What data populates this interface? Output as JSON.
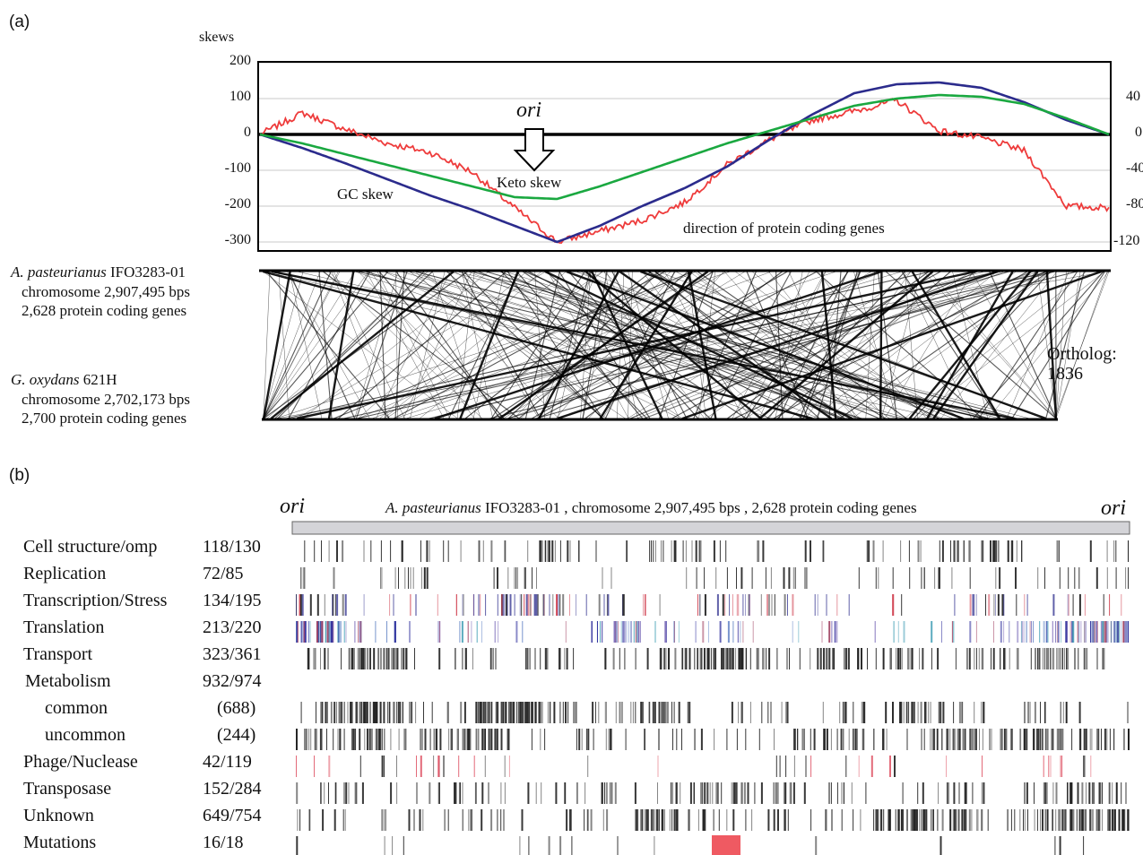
{
  "figure": {
    "panel_a_label": "(a)",
    "panel_b_label": "(b)"
  },
  "panel_a": {
    "y_axis_title": "skews",
    "left_ticks": [
      "200",
      "100",
      "0",
      "-100",
      "-200",
      "-300"
    ],
    "right_ticks": [
      "40",
      "0",
      "-40",
      "-80",
      "-120"
    ],
    "ori_label": "ori",
    "series_labels": {
      "gc": "GC skew",
      "keto": "Keto skew",
      "direction": "direction of protein coding genes"
    },
    "colors": {
      "gc": "#2b2b8c",
      "keto": "#1aa840",
      "direction": "#ee3b3b"
    },
    "genome_top": {
      "species": "A. pasteurianus",
      "strain": " IFO3283-01",
      "chromosome": "chromosome 2,907,495 bps",
      "genes": "2,628 protein coding genes"
    },
    "genome_bottom": {
      "species": "G. oxydans",
      "strain": " 621H",
      "chromosome": "chromosome 2,702,173 bps",
      "genes": "2,700 protein coding genes"
    },
    "ortholog_label": "Ortholog:",
    "ortholog_count": "1836"
  },
  "chart_data": {
    "type": "line",
    "x": [
      0,
      0.05,
      0.1,
      0.15,
      0.2,
      0.25,
      0.3,
      0.35,
      0.4,
      0.45,
      0.5,
      0.55,
      0.6,
      0.65,
      0.7,
      0.75,
      0.8,
      0.85,
      0.9,
      0.95,
      1.0
    ],
    "series": [
      {
        "name": "GC skew",
        "values": [
          0,
          -38,
          -80,
          -125,
          -170,
          -210,
          -255,
          -300,
          -255,
          -200,
          -150,
          -90,
          -15,
          55,
          115,
          140,
          145,
          130,
          90,
          40,
          0
        ]
      },
      {
        "name": "Keto skew",
        "values": [
          0,
          -25,
          -55,
          -85,
          -115,
          -145,
          -175,
          -180,
          -145,
          -105,
          -65,
          -25,
          10,
          45,
          80,
          100,
          110,
          105,
          85,
          45,
          0
        ]
      },
      {
        "name": "direction of protein coding genes",
        "values": [
          0,
          60,
          15,
          -25,
          -50,
          -105,
          -205,
          -300,
          -270,
          -240,
          -190,
          -85,
          -15,
          40,
          65,
          95,
          10,
          -10,
          -45,
          -200,
          -205
        ]
      }
    ],
    "ylabel": "skews",
    "ylim": [
      -300,
      200
    ],
    "y2lim": [
      -120,
      40
    ],
    "grid": true
  },
  "panel_b": {
    "ori_left": "ori",
    "ori_right": "ori",
    "title_species": "A. pasteurianus",
    "title_rest": " IFO3283-01 , chromosome 2,907,495 bps , 2,628 protein coding genes",
    "categories": [
      {
        "name": "Cell structure/omp",
        "count": "118/130",
        "marks": 118,
        "colors": [
          "#222222"
        ]
      },
      {
        "name": "Replication",
        "count": "72/85",
        "marks": 72,
        "colors": [
          "#222222"
        ]
      },
      {
        "name": "Transcription/Stress",
        "count": "134/195",
        "marks": 134,
        "colors": [
          "#222222",
          "#d04050",
          "#5050a0"
        ]
      },
      {
        "name": "Translation",
        "count": "213/220",
        "marks": 213,
        "colors": [
          "#4aa3b8",
          "#7a6ab8",
          "#2b2b9a",
          "#6a8ac8",
          "#a04060"
        ]
      },
      {
        "name": "Transport",
        "count": "323/361",
        "marks": 323,
        "colors": [
          "#222222"
        ]
      },
      {
        "name": "Metabolism",
        "count": "932/974",
        "marks": 0,
        "colors": []
      },
      {
        "name": "common",
        "count": "(688)",
        "marks": 688,
        "colors": [
          "#222222"
        ]
      },
      {
        "name": "uncommon",
        "count": "(244)",
        "marks": 244,
        "colors": [
          "#222222"
        ]
      },
      {
        "name": "Phage/Nuclease",
        "count": "42/119",
        "marks": 42,
        "colors": [
          "#e05a6a",
          "#222222"
        ]
      },
      {
        "name": "Transposase",
        "count": "152/284",
        "marks": 152,
        "colors": [
          "#222222"
        ]
      },
      {
        "name": "Unknown",
        "count": "649/754",
        "marks": 649,
        "colors": [
          "#222222"
        ]
      },
      {
        "name": "Mutations",
        "count": "16/18",
        "marks": 16,
        "colors": [
          "#222222"
        ]
      }
    ]
  }
}
